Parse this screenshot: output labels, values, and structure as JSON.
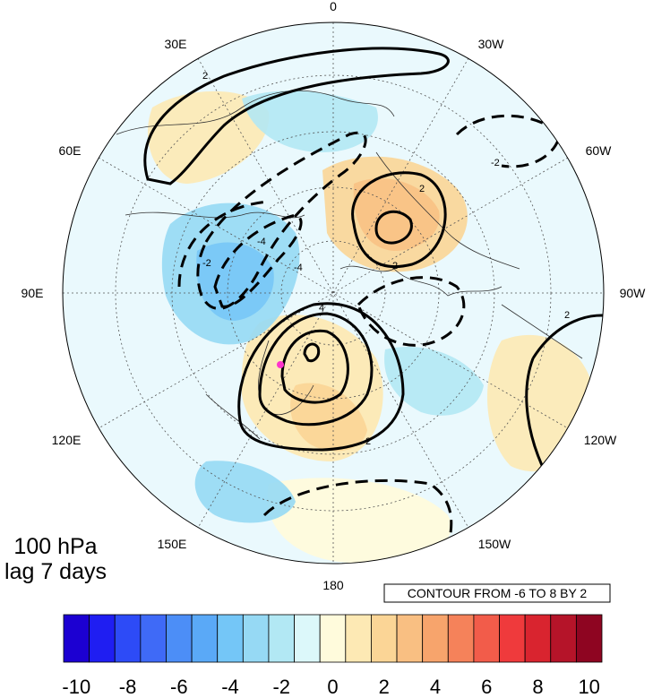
{
  "map": {
    "projection": "north polar stereographic",
    "lon_labels": [
      {
        "text": "0",
        "lon": 0
      },
      {
        "text": "30W",
        "lon": -30
      },
      {
        "text": "60W",
        "lon": -60
      },
      {
        "text": "90W",
        "lon": -90
      },
      {
        "text": "120W",
        "lon": -120
      },
      {
        "text": "150W",
        "lon": -150
      },
      {
        "text": "180",
        "lon": 180
      },
      {
        "text": "150E",
        "lon": 150
      },
      {
        "text": "120E",
        "lon": 120
      },
      {
        "text": "90E",
        "lon": 90
      },
      {
        "text": "60E",
        "lon": 60
      },
      {
        "text": "30E",
        "lon": 30
      }
    ],
    "contour_info": "CONTOUR FROM -6 TO 8 BY 2",
    "contour_min": -6,
    "contour_max": 8,
    "contour_interval": 2,
    "contour_labels": [
      "2",
      "2",
      "2",
      "2",
      "4",
      "-4",
      "-4",
      "-2",
      "-2",
      "2"
    ],
    "marker_color": "#ff33cc"
  },
  "side_label": {
    "line1": "100 hPa",
    "line2": "lag 7 days"
  },
  "colorbar": {
    "tick_labels": [
      "-10",
      "-8",
      "-6",
      "-4",
      "-2",
      "0",
      "2",
      "4",
      "6",
      "8",
      "10"
    ],
    "tick_values": [
      -10,
      -8,
      -6,
      -4,
      -2,
      0,
      2,
      4,
      6,
      8,
      10
    ],
    "colors": [
      "#1c00d2",
      "#1f1ef2",
      "#2d4bf7",
      "#3f6af7",
      "#4c8ef7",
      "#5aa9f7",
      "#74c6f7",
      "#96d9f4",
      "#b2e8f4",
      "#dcf8fa",
      "#fffbdc",
      "#fde9b4",
      "#fbd596",
      "#f9bf82",
      "#f7a46c",
      "#f5825a",
      "#f25c4a",
      "#ef3a3c",
      "#d9242f",
      "#b51429",
      "#8e0521"
    ]
  }
}
